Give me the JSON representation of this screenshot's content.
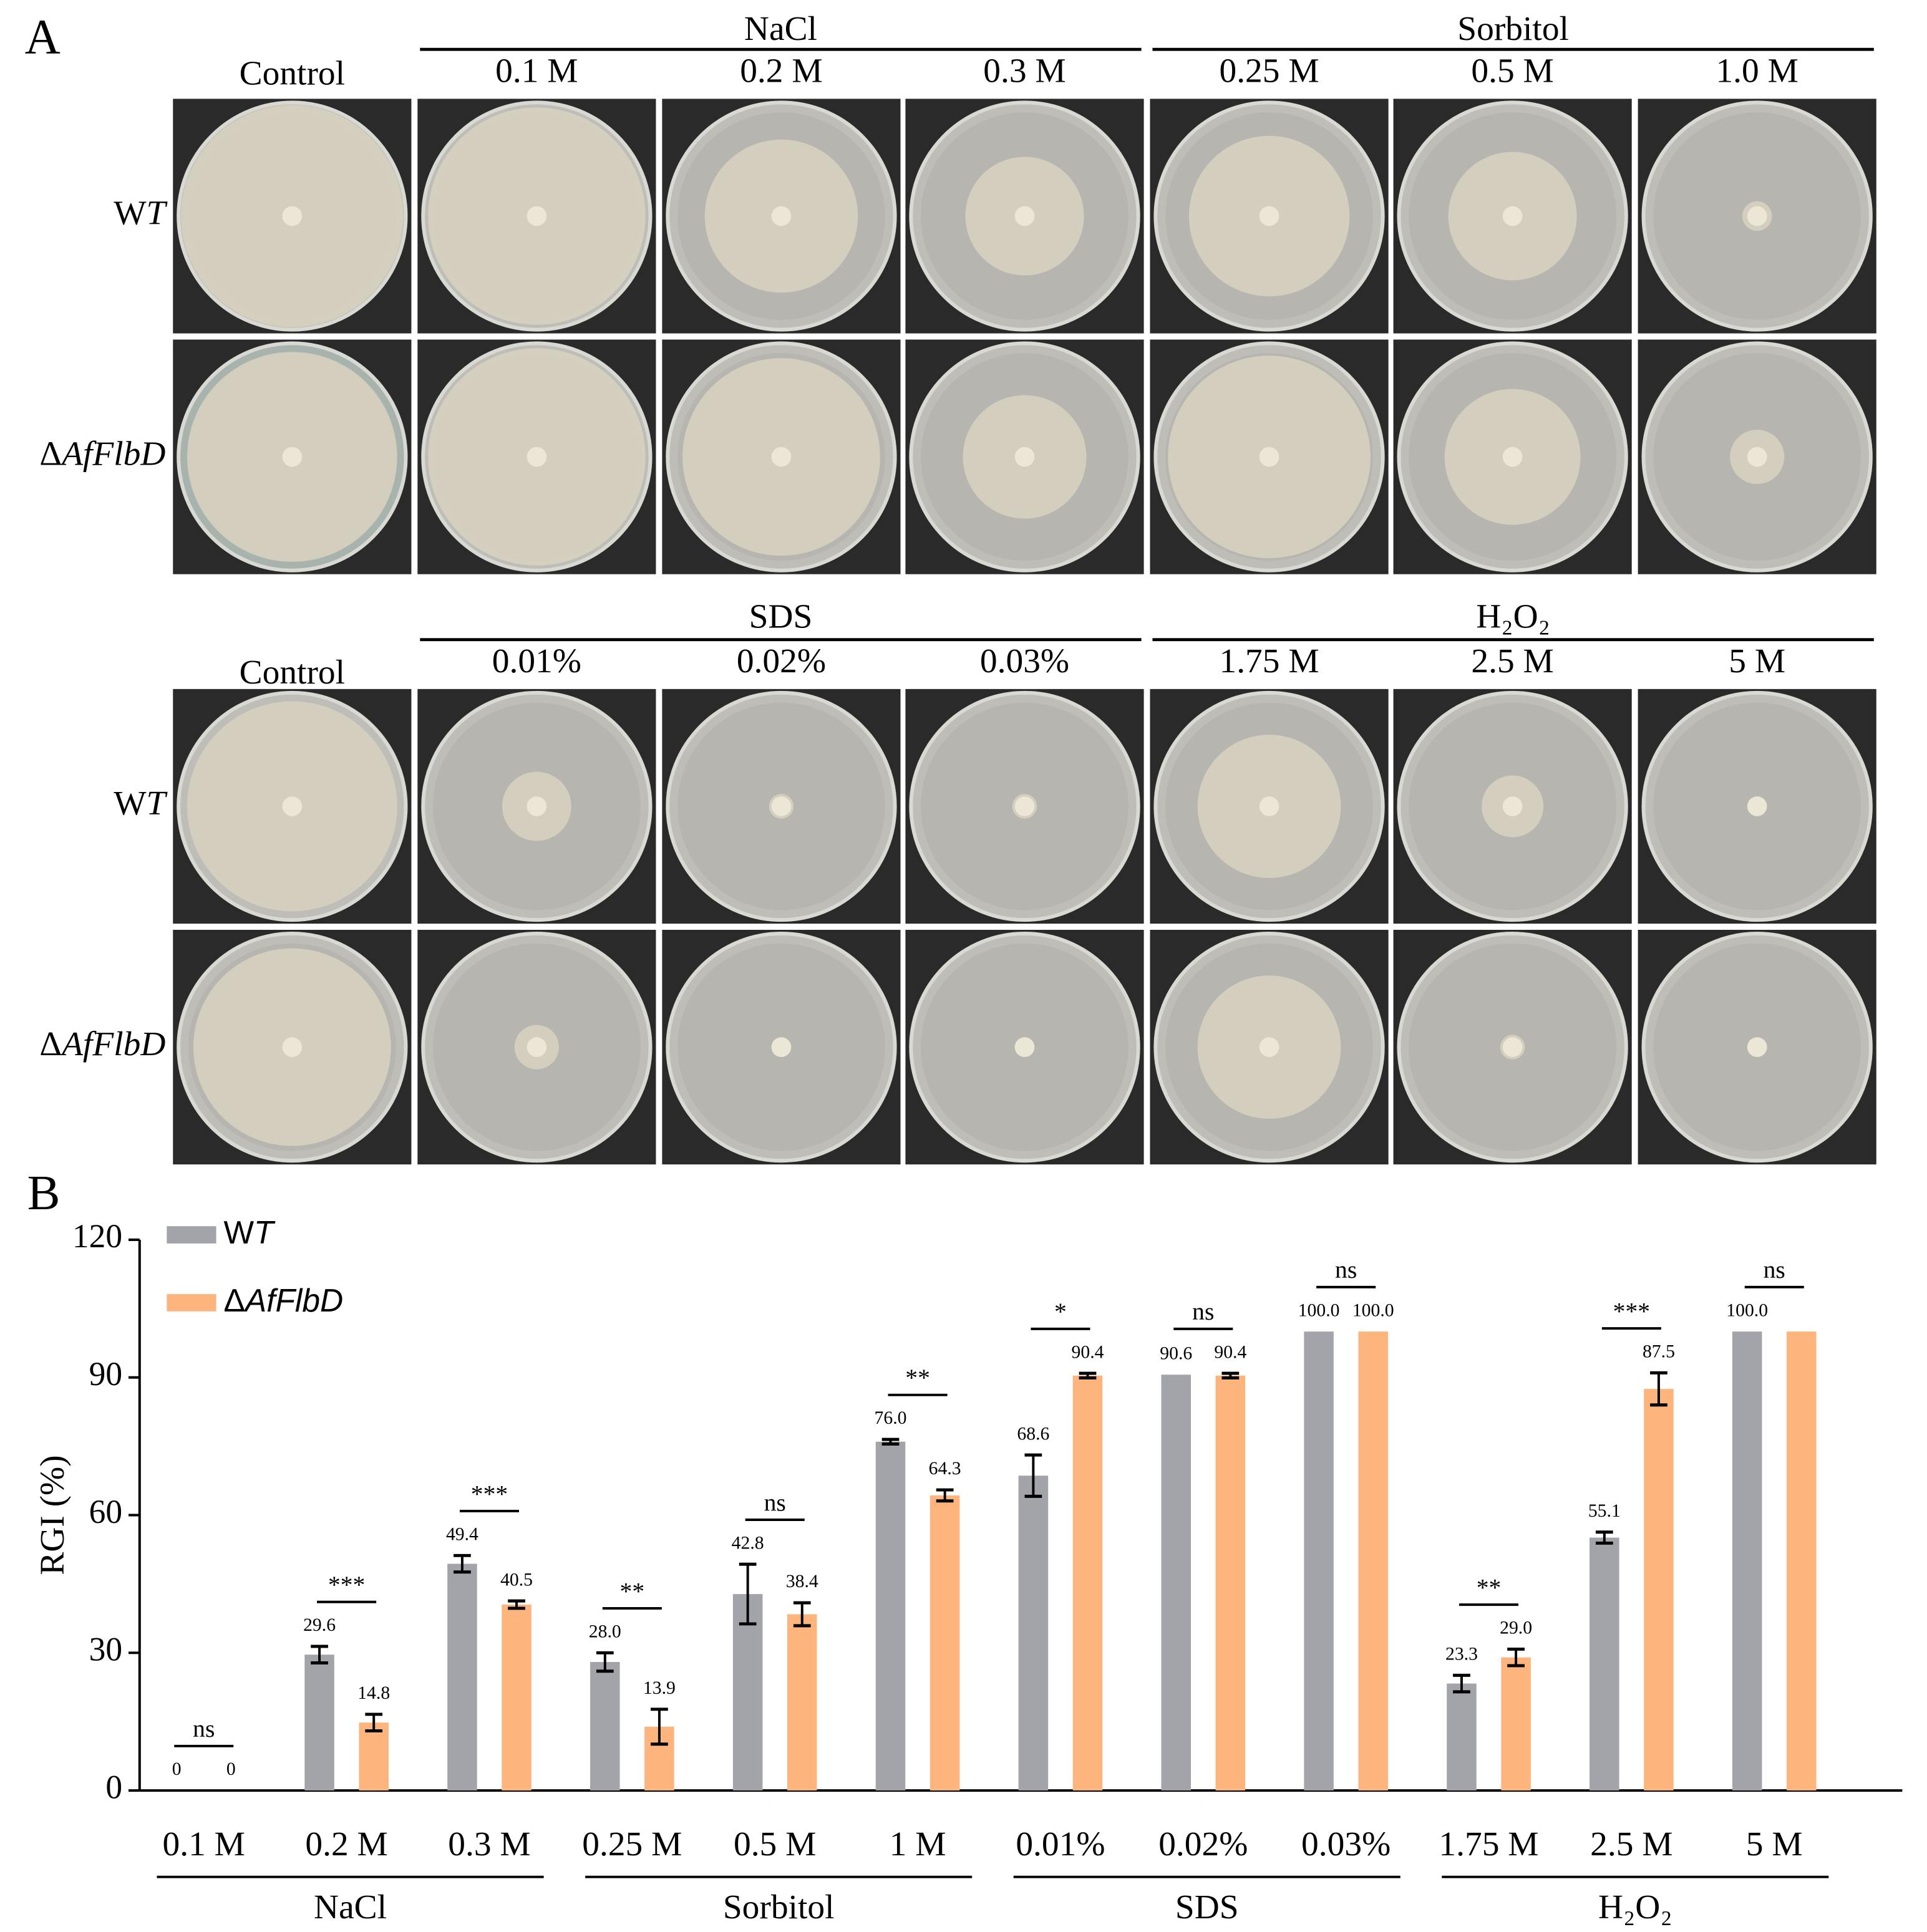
{
  "panel_a": {
    "label": "A",
    "blocks": [
      {
        "control": "Control",
        "groups": [
          {
            "name": "NaCl",
            "concentrations": [
              "0.1 M",
              "0.2 M",
              "0.3 M"
            ]
          },
          {
            "name": "Sorbitol",
            "concentrations": [
              "0.25 M",
              "0.5 M",
              "1.0 M"
            ]
          }
        ],
        "rows": [
          "WT",
          "ΔAfFlbD"
        ]
      },
      {
        "control": "Control",
        "groups": [
          {
            "name": "SDS",
            "concentrations": [
              "0.01%",
              "0.02%",
              "0.03%"
            ]
          },
          {
            "name": "H₂O₂",
            "concentrations": [
              "1.75 M",
              "2.5 M",
              "5 M"
            ]
          }
        ],
        "rows": [
          "WT",
          "ΔAfFlbD"
        ]
      }
    ]
  },
  "panel_b_label": "B",
  "chart_data": {
    "type": "bar",
    "ylabel": "RGI (%)",
    "categories": [
      "0.1 M",
      "0.2 M",
      "0.3 M",
      "0.25 M",
      "0.5 M",
      "1 M",
      "0.01%",
      "0.02%",
      "0.03%",
      "1.75 M",
      "2.5 M",
      "5 M"
    ],
    "groups": [
      "NaCl",
      "Sorbitol",
      "SDS",
      "H₂O₂"
    ],
    "series": [
      {
        "name": "WT",
        "color": "#a3a3aa",
        "values": [
          0,
          29.6,
          49.4,
          28.0,
          42.8,
          76.0,
          68.6,
          90.6,
          100.0,
          23.3,
          55.1,
          100.0
        ],
        "value_labels": [
          "0",
          "29.6",
          "49.4",
          "28.0",
          "42.8",
          "76.0",
          "68.6",
          "90.6",
          "100.0",
          "23.3",
          "55.1",
          "100.0"
        ],
        "errors": [
          null,
          1.8,
          1.8,
          2.0,
          6.5,
          0.5,
          4.5,
          null,
          null,
          1.8,
          1.2,
          null
        ]
      },
      {
        "name": "ΔAfFlbD",
        "color": "#fdb47d",
        "values": [
          0,
          14.8,
          40.5,
          13.9,
          38.4,
          64.3,
          90.4,
          90.4,
          100.0,
          29.0,
          87.5,
          100.0
        ],
        "value_labels": [
          "0",
          "14.8",
          "40.5",
          "13.9",
          "38.4",
          "64.3",
          "90.4",
          "90.4",
          "100.0",
          "29.0",
          "87.5",
          null
        ],
        "errors": [
          null,
          1.8,
          0.8,
          3.8,
          2.5,
          1.2,
          0.5,
          0.5,
          null,
          1.8,
          3.5,
          null
        ]
      }
    ],
    "significance": [
      "ns",
      "***",
      "***",
      "**",
      "ns",
      "**",
      "*",
      "ns",
      "ns",
      "**",
      "***",
      "ns"
    ],
    "ylim": [
      0,
      120
    ],
    "yticks": [
      0,
      30,
      60,
      90,
      120
    ],
    "legend": "upper left"
  }
}
